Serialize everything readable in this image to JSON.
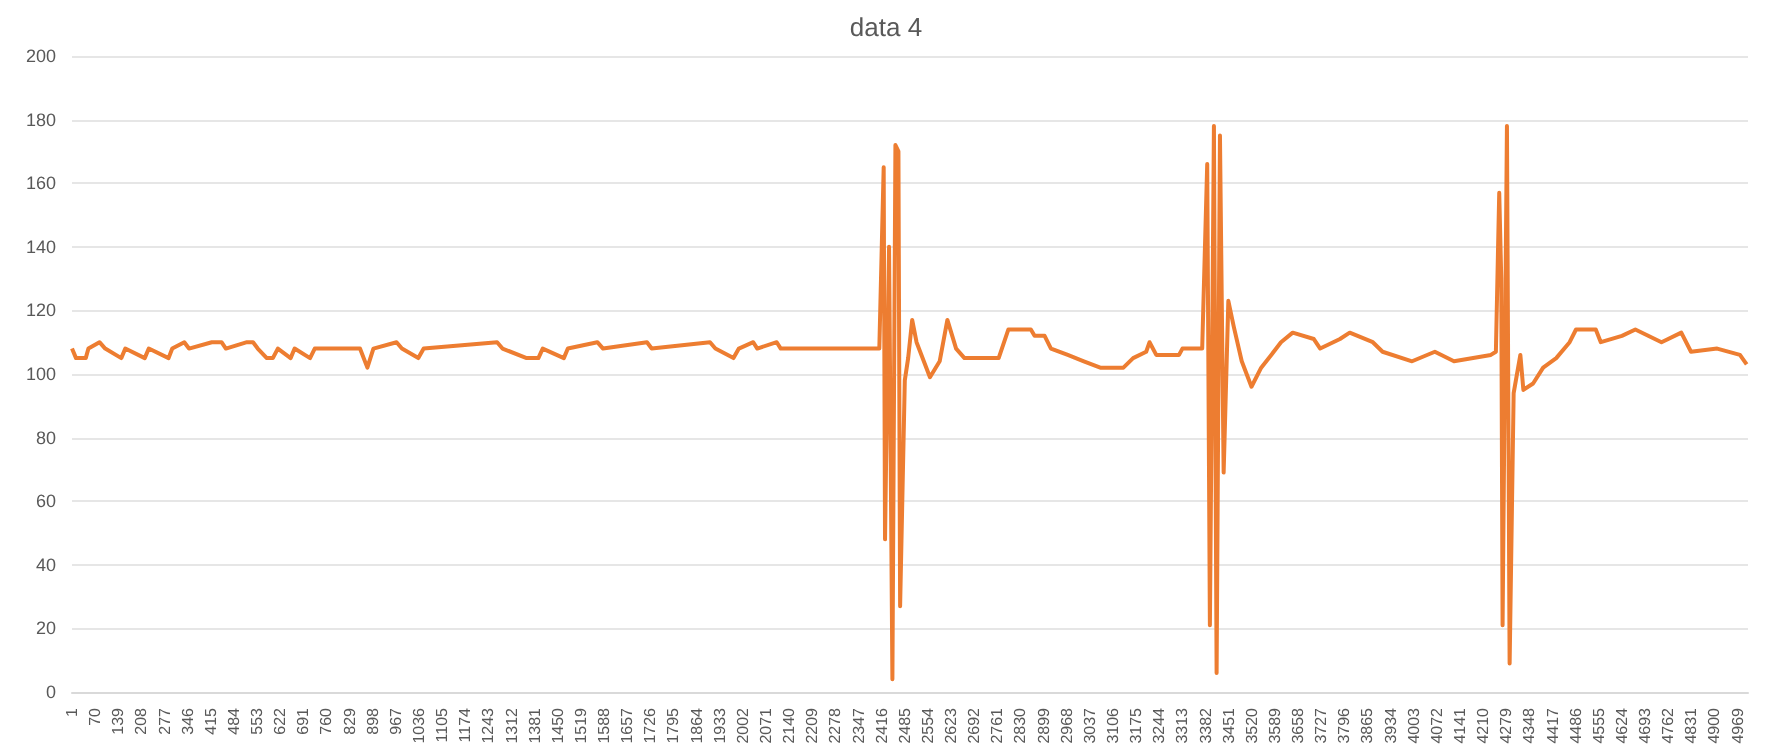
{
  "chart_data": {
    "type": "line",
    "title": "data 4",
    "marker": "none",
    "grid": "y",
    "color": "#ed7d31",
    "x": [
      1,
      13,
      42,
      50,
      83,
      100,
      148,
      160,
      218,
      230,
      289,
      300,
      336,
      350,
      418,
      447,
      460,
      523,
      541,
      555,
      582,
      600,
      615,
      653,
      665,
      711,
      725,
      860,
      882,
      900,
      969,
      985,
      1034,
      1050,
      1269,
      1285,
      1357,
      1392,
      1405,
      1468,
      1480,
      1568,
      1585,
      1716,
      1730,
      1904,
      1920,
      1974,
      1990,
      2033,
      2045,
      2103,
      2115,
      2409,
      2422,
      2426,
      2438,
      2448,
      2457,
      2466,
      2471,
      2485,
      2495,
      2507,
      2520,
      2560,
      2589,
      2612,
      2638,
      2663,
      2765,
      2794,
      2861,
      2872,
      2902,
      2921,
      2971,
      3019,
      3068,
      3137,
      3166,
      3205,
      3215,
      3235,
      3303,
      3313,
      3372,
      3387,
      3395,
      3407,
      3415,
      3425,
      3436,
      3450,
      3466,
      3490,
      3519,
      3548,
      3578,
      3607,
      3642,
      3705,
      3724,
      3783,
      3812,
      3881,
      3910,
      3998,
      4066,
      4123,
      4233,
      4248,
      4258,
      4264,
      4268,
      4281,
      4289,
      4301,
      4321,
      4330,
      4359,
      4389,
      4428,
      4468,
      4487,
      4546,
      4561,
      4624,
      4664,
      4742,
      4801,
      4830,
      4908,
      4976,
      4996
    ],
    "values": [
      108,
      105,
      105,
      108,
      110,
      108,
      105,
      108,
      105,
      108,
      105,
      108,
      110,
      108,
      110,
      110,
      108,
      110,
      110,
      108,
      105,
      105,
      108,
      105,
      108,
      105,
      108,
      108,
      102,
      108,
      110,
      108,
      105,
      108,
      110,
      108,
      105,
      105,
      108,
      105,
      108,
      110,
      108,
      110,
      108,
      110,
      108,
      105,
      108,
      110,
      108,
      110,
      108,
      108,
      165,
      48,
      140,
      4,
      172,
      170,
      27,
      98,
      105,
      117,
      110,
      99,
      104,
      117,
      108,
      105,
      105,
      114,
      114,
      112,
      112,
      108,
      106,
      104,
      102,
      102,
      105,
      107,
      110,
      106,
      106,
      108,
      108,
      166,
      21,
      178,
      6,
      175,
      69,
      123,
      115,
      104,
      96,
      102,
      106,
      110,
      113,
      111,
      108,
      111,
      113,
      110,
      107,
      104,
      107,
      104,
      106,
      107,
      157,
      130,
      21,
      178,
      9,
      94,
      106,
      95,
      97,
      102,
      105,
      110,
      114,
      114,
      110,
      112,
      114,
      110,
      113,
      107,
      108,
      106,
      103
    ],
    "xlim": [
      1,
      5000
    ],
    "xticks": [
      1,
      70,
      139,
      208,
      277,
      346,
      415,
      484,
      553,
      622,
      691,
      760,
      829,
      898,
      967,
      1036,
      1105,
      1174,
      1243,
      1312,
      1381,
      1450,
      1519,
      1588,
      1657,
      1726,
      1795,
      1864,
      1933,
      2002,
      2071,
      2140,
      2209,
      2278,
      2347,
      2416,
      2485,
      2554,
      2623,
      2692,
      2761,
      2830,
      2899,
      2968,
      3037,
      3106,
      3175,
      3244,
      3313,
      3382,
      3451,
      3520,
      3589,
      3658,
      3727,
      3796,
      3865,
      3934,
      4003,
      4072,
      4141,
      4210,
      4279,
      4348,
      4417,
      4486,
      4555,
      4624,
      4693,
      4762,
      4831,
      4900,
      4969
    ],
    "ylim": [
      0,
      200
    ],
    "yticks": [
      0,
      20,
      40,
      60,
      80,
      100,
      120,
      140,
      160,
      180,
      200
    ]
  }
}
